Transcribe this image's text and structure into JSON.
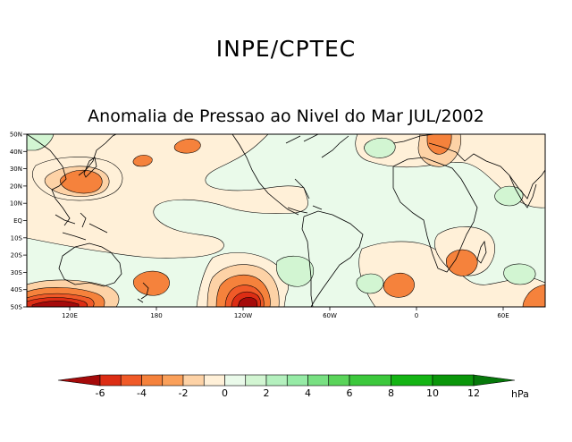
{
  "header": {
    "organization": "INPE/CPTEC",
    "title": "Anomalia de Pressao ao Nivel do Mar JUL/2002"
  },
  "map": {
    "lat_labels": [
      "50N",
      "40N",
      "30N",
      "20N",
      "10N",
      "EQ",
      "10S",
      "20S",
      "30S",
      "40S",
      "50S"
    ],
    "lon_labels": [
      "120E",
      "180",
      "120W",
      "60W",
      "0",
      "60E"
    ]
  },
  "colorbar": {
    "unit": "hPa",
    "labels": [
      "-6",
      "-4",
      "-2",
      "0",
      "2",
      "4",
      "6",
      "8",
      "10",
      "12"
    ],
    "colors": {
      "lt_-6": "#a50a0a",
      "-6_-5": "#dc2d14",
      "-5_-4": "#f05a28",
      "-4_-3": "#f5823c",
      "-3_-2": "#faa05a",
      "-2_-1": "#fdd2a6",
      "-1_0": "#fff0d8",
      "0_1": "#eafaea",
      "1_2": "#d2f5d2",
      "2_3": "#b4f0be",
      "3_4": "#96eba6",
      "4_5": "#78e082",
      "5_6": "#5ad45a",
      "6_8": "#3cc83c",
      "8_10": "#14b414",
      "10_12": "#0a960a",
      "gt_12": "#06780a"
    }
  }
}
